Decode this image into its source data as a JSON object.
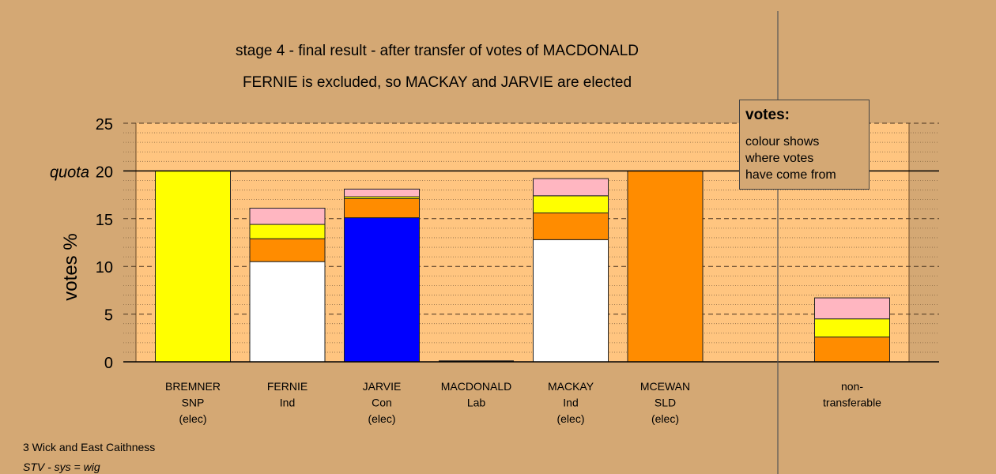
{
  "chart_data": {
    "type": "bar",
    "title": "stage 4 - final result - after transfer of votes of MACDONALD",
    "subtitle": "FERNIE is excluded, so MACKAY and JARVIE are elected",
    "ylabel": "votes %",
    "ylim": [
      0,
      25
    ],
    "yticks": [
      "0",
      "5",
      "10",
      "15",
      "20",
      "25"
    ],
    "quota": {
      "label": "quota",
      "value": 20
    },
    "legend": {
      "title": "votes:",
      "text": "colour shows\nwhere votes\nhave come from",
      "placement": "top-right"
    },
    "categories": [
      {
        "lines": [
          "BREMNER",
          "SNP",
          "(elec)"
        ]
      },
      {
        "lines": [
          "FERNIE",
          "Ind"
        ]
      },
      {
        "lines": [
          "JARVIE",
          "Con",
          "(elec)"
        ]
      },
      {
        "lines": [
          "MACDONALD",
          "Lab"
        ]
      },
      {
        "lines": [
          "MACKAY",
          "Ind",
          "(elec)"
        ]
      },
      {
        "lines": [
          "MCEWAN",
          "SLD",
          "(elec)"
        ]
      },
      {
        "lines": [
          "non-",
          "transferable"
        ]
      }
    ],
    "stacks": [
      [
        {
          "value": 20,
          "color": "#ffff00"
        }
      ],
      [
        {
          "value": 10.5,
          "color": "#ffffff"
        },
        {
          "value": 2.4,
          "color": "#ff8c00"
        },
        {
          "value": 1.5,
          "color": "#ffff00"
        },
        {
          "value": 1.7,
          "color": "#ffb6c1"
        }
      ],
      [
        {
          "value": 15.1,
          "color": "#0000ff"
        },
        {
          "value": 2.0,
          "color": "#ff8c00"
        },
        {
          "value": 0.2,
          "color": "#ffff00"
        },
        {
          "value": 0.8,
          "color": "#ffb6c1"
        }
      ],
      [],
      [
        {
          "value": 12.8,
          "color": "#ffffff"
        },
        {
          "value": 2.8,
          "color": "#ff8c00"
        },
        {
          "value": 1.8,
          "color": "#ffff00"
        },
        {
          "value": 1.8,
          "color": "#ffb6c1"
        }
      ],
      [
        {
          "value": 20,
          "color": "#ff8c00"
        }
      ],
      [
        {
          "value": 2.6,
          "color": "#ff8c00"
        },
        {
          "value": 1.9,
          "color": "#ffff00"
        },
        {
          "value": 2.2,
          "color": "#ffb6c1"
        }
      ]
    ],
    "grid": true,
    "colors": {
      "background": "#d4a874",
      "plot_background": "#ffc580"
    }
  },
  "footer": {
    "line1": "3 Wick and East Caithness",
    "line2": "STV - sys = wig"
  }
}
